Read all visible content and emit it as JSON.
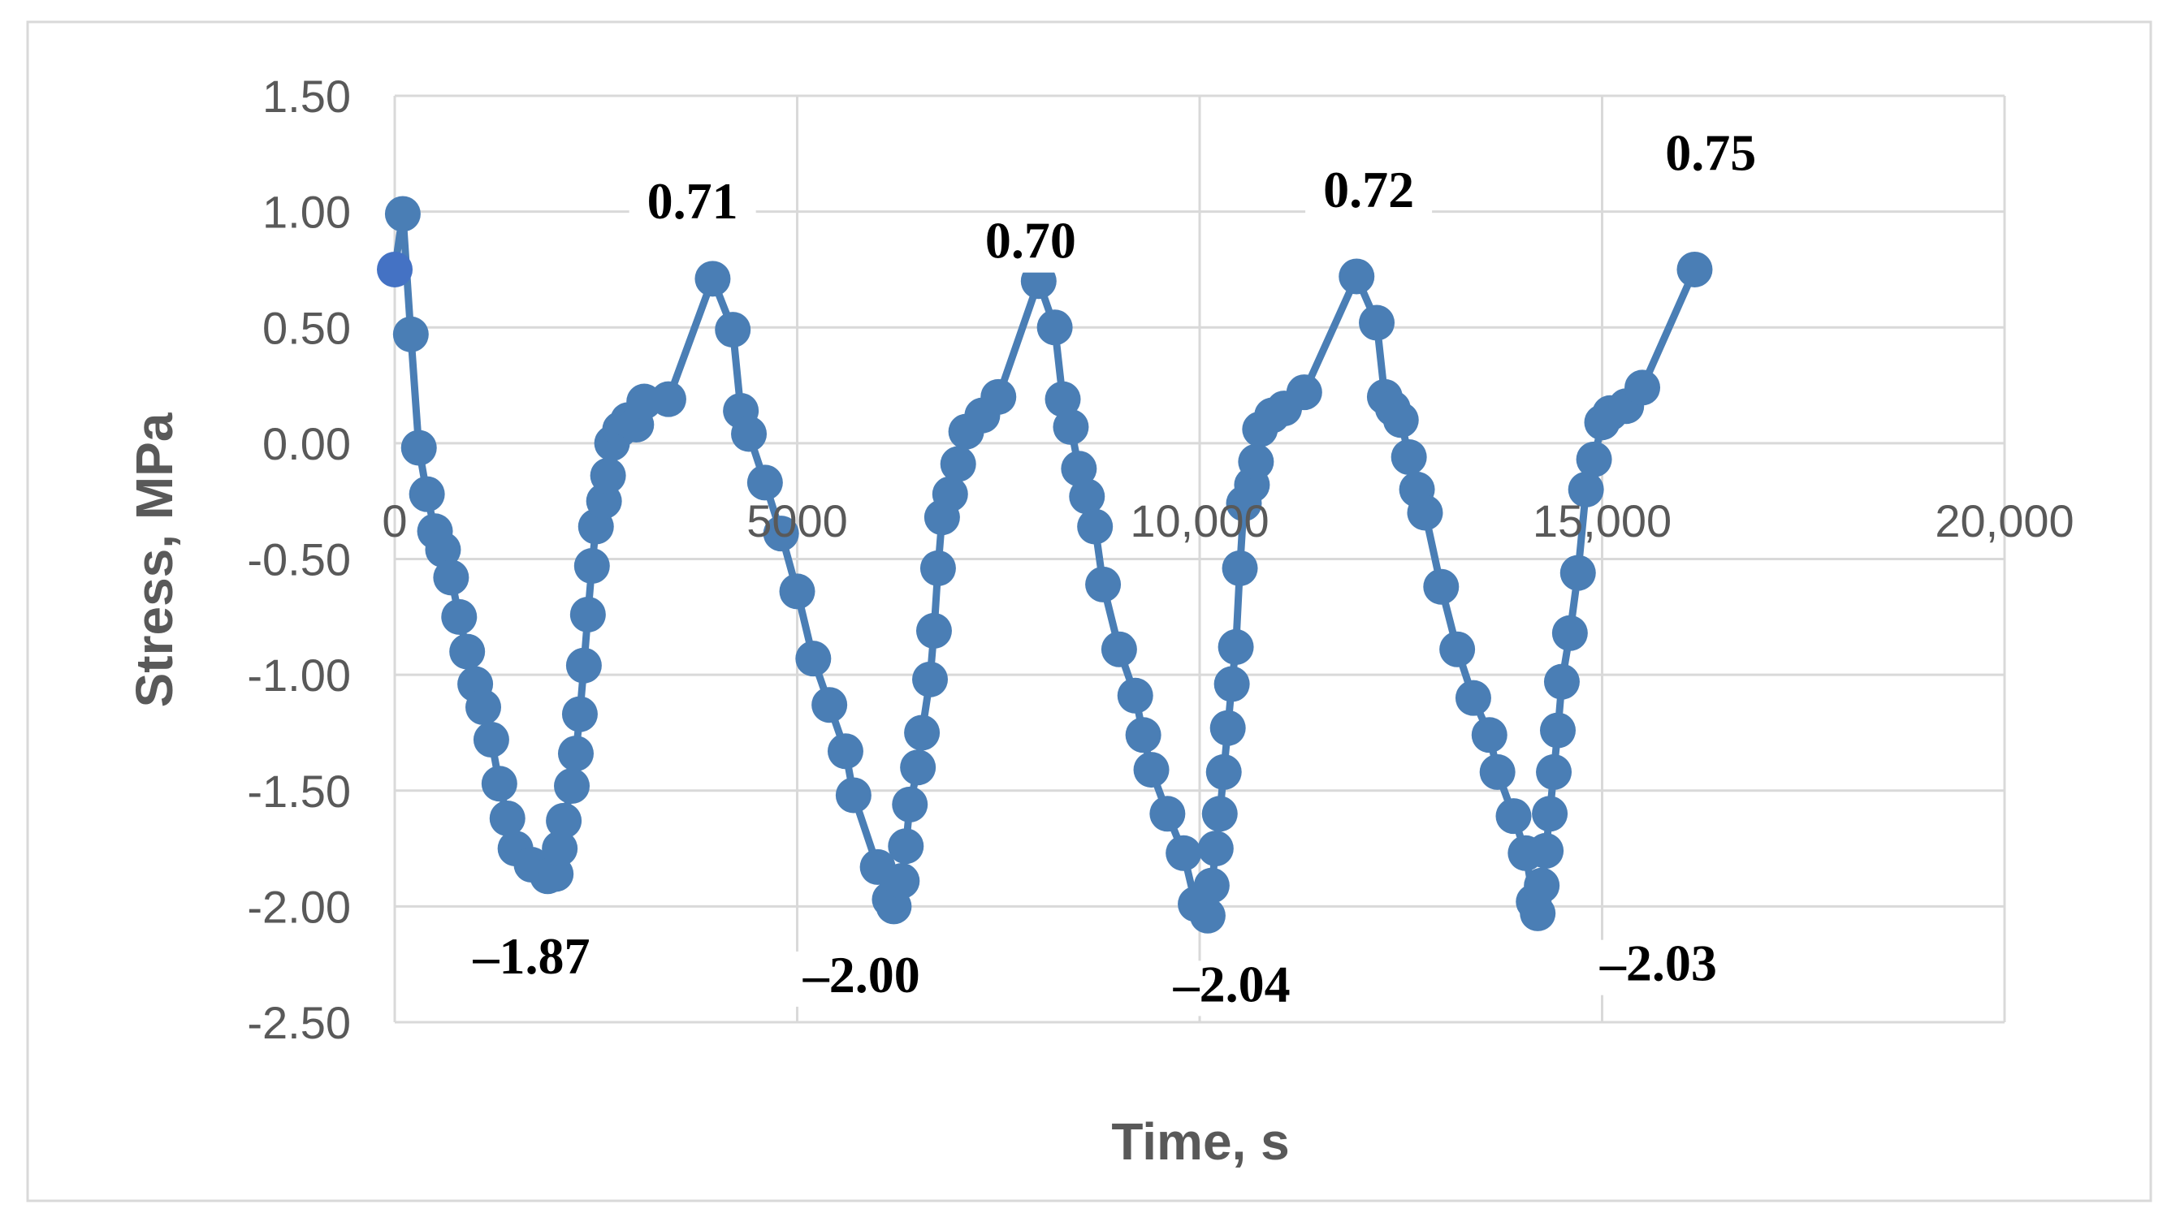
{
  "chart_data": {
    "type": "scatter",
    "mode": "lines+markers",
    "title": "",
    "xlabel": "Time, s",
    "ylabel": "Stress, MPa",
    "xlim": [
      0,
      20000
    ],
    "ylim": [
      -2.5,
      1.5
    ],
    "x_ticks": [
      0,
      5000,
      10000,
      15000,
      20000
    ],
    "x_tick_labels": [
      "0",
      "5000",
      "10,000",
      "15,000",
      "20,000"
    ],
    "y_ticks": [
      1.5,
      1.0,
      0.5,
      0.0,
      -0.5,
      -1.0,
      -1.5,
      -2.0,
      -2.5
    ],
    "y_tick_labels": [
      "1.50",
      "1.00",
      "0.50",
      "0.00",
      "-0.50",
      "-1.00",
      "-1.50",
      "-2.00",
      "-2.50"
    ],
    "grid": true,
    "legend": "none",
    "colors": {
      "series": "#4a7eb5",
      "first_point": "#4472c4",
      "grid": "#d9d9d9",
      "frame": "#d9d9d9",
      "tick_text": "#595959",
      "annotation_text": "#000000"
    },
    "series": [
      {
        "x": [
          0,
          100,
          200,
          300,
          400,
          500,
          600,
          700,
          800,
          900,
          1000,
          1100,
          1200,
          1300,
          1400,
          1500,
          1700,
          1900,
          2000,
          2050,
          2100,
          2200,
          2250,
          2300,
          2350,
          2400,
          2450,
          2500,
          2600,
          2650,
          2700,
          2800,
          2900,
          3000,
          3100,
          3400,
          3950,
          4200,
          4300,
          4400,
          4600,
          4800,
          5000,
          5200,
          5400,
          5600,
          5700,
          6000,
          6150,
          6200,
          6300,
          6350,
          6400,
          6500,
          6550,
          6650,
          6700,
          6750,
          6800,
          6900,
          7000,
          7100,
          7300,
          7500,
          8000,
          8200,
          8300,
          8400,
          8500,
          8600,
          8700,
          8800,
          9000,
          9200,
          9300,
          9400,
          9600,
          9800,
          9950,
          10100,
          10150,
          10200,
          10250,
          10300,
          10350,
          10400,
          10450,
          10500,
          10550,
          10650,
          10700,
          10750,
          10900,
          11050,
          11300,
          11950,
          12200,
          12300,
          12400,
          12500,
          12600,
          12700,
          12800,
          13000,
          13200,
          13400,
          13600,
          13700,
          13900,
          14050,
          14150,
          14200,
          14250,
          14300,
          14350,
          14400,
          14450,
          14500,
          14600,
          14700,
          14800,
          14900,
          15000,
          15100,
          15300,
          15500,
          16150
        ],
        "y": [
          0.75,
          0.99,
          0.47,
          -0.02,
          -0.22,
          -0.38,
          -0.46,
          -0.58,
          -0.75,
          -0.9,
          -1.04,
          -1.14,
          -1.28,
          -1.47,
          -1.62,
          -1.75,
          -1.82,
          -1.87,
          -1.86,
          -1.75,
          -1.63,
          -1.48,
          -1.34,
          -1.17,
          -0.96,
          -0.74,
          -0.53,
          -0.36,
          -0.25,
          -0.14,
          0.0,
          0.06,
          0.1,
          0.08,
          0.18,
          0.19,
          0.71,
          0.49,
          0.14,
          0.04,
          -0.17,
          -0.39,
          -0.64,
          -0.93,
          -1.13,
          -1.33,
          -1.52,
          -1.83,
          -1.97,
          -2.0,
          -1.89,
          -1.74,
          -1.56,
          -1.4,
          -1.25,
          -1.02,
          -0.81,
          -0.54,
          -0.32,
          -0.22,
          -0.09,
          0.05,
          0.12,
          0.2,
          0.7,
          0.5,
          0.19,
          0.07,
          -0.11,
          -0.23,
          -0.36,
          -0.61,
          -0.89,
          -1.09,
          -1.26,
          -1.41,
          -1.6,
          -1.77,
          -1.99,
          -2.04,
          -1.91,
          -1.75,
          -1.6,
          -1.42,
          -1.23,
          -1.04,
          -0.88,
          -0.54,
          -0.26,
          -0.18,
          -0.08,
          0.06,
          0.12,
          0.15,
          0.22,
          0.72,
          0.52,
          0.2,
          0.15,
          0.1,
          -0.06,
          -0.2,
          -0.3,
          -0.62,
          -0.89,
          -1.1,
          -1.26,
          -1.42,
          -1.61,
          -1.77,
          -1.98,
          -2.03,
          -1.91,
          -1.76,
          -1.6,
          -1.42,
          -1.24,
          -1.03,
          -0.82,
          -0.56,
          -0.2,
          -0.07,
          0.09,
          0.13,
          0.16,
          0.24,
          0.75
        ]
      }
    ],
    "annotations": [
      {
        "text": "0.71",
        "x": 3700,
        "y": 0.97
      },
      {
        "text": "0.70",
        "x": 7900,
        "y": 0.8
      },
      {
        "text": "0.72",
        "x": 12100,
        "y": 1.02
      },
      {
        "text": "0.75",
        "x": 16350,
        "y": 1.18
      },
      {
        "text": "–1.87",
        "x": 1700,
        "y": -2.29
      },
      {
        "text": "–2.00",
        "x": 5800,
        "y": -2.37
      },
      {
        "text": "–2.04",
        "x": 10400,
        "y": -2.41
      },
      {
        "text": "–2.03",
        "x": 15700,
        "y": -2.32
      }
    ]
  }
}
